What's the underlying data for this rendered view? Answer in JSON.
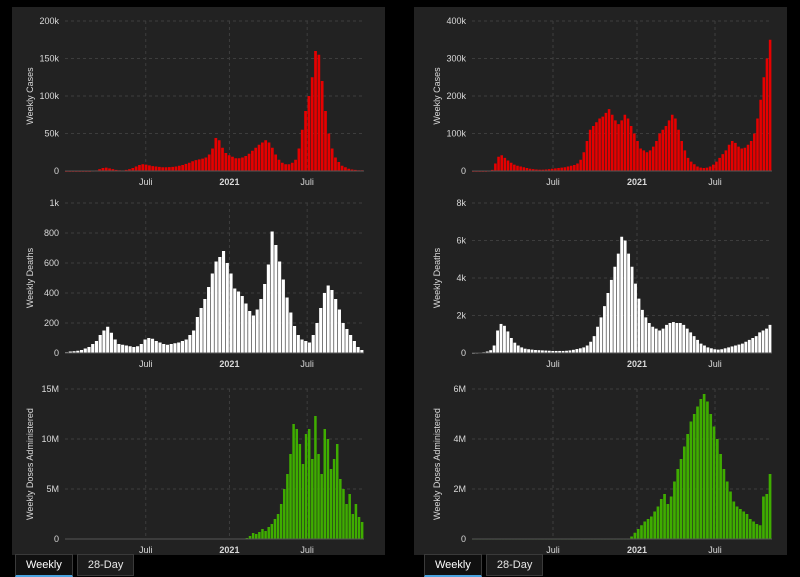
{
  "tabs": [
    "Weekly",
    "28-Day"
  ],
  "colors": {
    "cases": "#e60000",
    "deaths": "#ffffff",
    "doses": "#3fad00",
    "grid": "#3d3d3d",
    "axis_text": "#d9d9d9",
    "panel": "#222222"
  },
  "x_labels": [
    "Juli",
    "2021",
    "Juli"
  ],
  "left": {
    "charts": [
      {
        "key": "cases",
        "chart_data": {
          "type": "bar",
          "title": "",
          "xlabel": "",
          "ylabel": "Weekly Cases",
          "ylim": [
            0,
            200000
          ],
          "yticks": [
            "0",
            "50k",
            "100k",
            "150k",
            "200k"
          ],
          "xticks": [
            "Juli",
            "2021",
            "Juli"
          ],
          "color": "#e60000",
          "grid": true,
          "values": [
            0,
            0,
            0,
            0,
            0,
            0,
            0,
            0,
            300,
            800,
            2500,
            4000,
            4500,
            3500,
            2500,
            1500,
            1000,
            800,
            1500,
            2500,
            4000,
            6000,
            8000,
            9000,
            8500,
            7500,
            6500,
            6000,
            5500,
            5000,
            5000,
            5200,
            5500,
            6000,
            7000,
            8000,
            9500,
            11000,
            13000,
            14500,
            15500,
            16500,
            18000,
            22000,
            30000,
            44000,
            41000,
            31000,
            24000,
            21000,
            19000,
            17000,
            17000,
            18000,
            20000,
            23000,
            27000,
            31000,
            35000,
            38000,
            41000,
            38000,
            31000,
            22000,
            15000,
            11000,
            9000,
            9000,
            11000,
            15000,
            30000,
            55000,
            80000,
            100000,
            125000,
            160000,
            155000,
            120000,
            80000,
            50000,
            30000,
            18000,
            12000,
            7000,
            5000,
            3000,
            2000,
            1500,
            1000,
            1000
          ]
        }
      },
      {
        "key": "deaths",
        "chart_data": {
          "type": "bar",
          "title": "",
          "xlabel": "",
          "ylabel": "Weekly Deaths",
          "ylim": [
            0,
            1000
          ],
          "yticks": [
            "0",
            "200",
            "400",
            "600",
            "800",
            "1k"
          ],
          "xticks": [
            "Juli",
            "2021",
            "Juli"
          ],
          "color": "#ffffff",
          "grid": true,
          "values": [
            5,
            10,
            12,
            15,
            20,
            30,
            40,
            60,
            80,
            120,
            150,
            175,
            135,
            90,
            60,
            55,
            50,
            45,
            40,
            45,
            60,
            90,
            100,
            95,
            80,
            70,
            60,
            55,
            60,
            65,
            70,
            80,
            90,
            120,
            150,
            240,
            300,
            360,
            440,
            530,
            610,
            640,
            680,
            600,
            530,
            430,
            410,
            380,
            330,
            280,
            250,
            290,
            360,
            460,
            590,
            810,
            720,
            610,
            490,
            370,
            270,
            180,
            120,
            90,
            80,
            70,
            120,
            200,
            300,
            400,
            450,
            420,
            360,
            290,
            200,
            160,
            120,
            80,
            40,
            20
          ]
        }
      },
      {
        "key": "doses",
        "chart_data": {
          "type": "bar",
          "title": "",
          "xlabel": "",
          "ylabel": "Weekly Doses Administered",
          "ylim": [
            0,
            15000000
          ],
          "yticks": [
            "0",
            "5M",
            "10M",
            "15M"
          ],
          "xticks": [
            "Juli",
            "2021",
            "Juli"
          ],
          "color": "#3fad00",
          "grid": true,
          "values": [
            30000,
            30000,
            30000,
            30000,
            30000,
            30000,
            30000,
            30000,
            30000,
            30000,
            30000,
            30000,
            30000,
            30000,
            30000,
            30000,
            30000,
            30000,
            30000,
            30000,
            30000,
            30000,
            30000,
            30000,
            30000,
            30000,
            30000,
            30000,
            30000,
            30000,
            30000,
            30000,
            30000,
            30000,
            30000,
            30000,
            30000,
            30000,
            30000,
            30000,
            30000,
            30000,
            30000,
            30000,
            30000,
            30000,
            30000,
            30000,
            30000,
            30000,
            30000,
            30000,
            30000,
            30000,
            30000,
            30000,
            30000,
            30000,
            100000,
            300000,
            600000,
            500000,
            700000,
            1000000,
            800000,
            1200000,
            1500000,
            2000000,
            2500000,
            3500000,
            5000000,
            6500000,
            8500000,
            11500000,
            11000000,
            9500000,
            7500000,
            10500000,
            11000000,
            8000000,
            12300000,
            8500000,
            6500000,
            11000000,
            10000000,
            7000000,
            8000000,
            9500000,
            6000000,
            5000000,
            3500000,
            4500000,
            2500000,
            3500000,
            2200000,
            1700000
          ]
        }
      }
    ]
  },
  "right": {
    "charts": [
      {
        "key": "cases",
        "chart_data": {
          "type": "bar",
          "title": "",
          "xlabel": "",
          "ylabel": "Weekly Cases",
          "ylim": [
            0,
            400000
          ],
          "yticks": [
            "0",
            "100k",
            "200k",
            "300k",
            "400k"
          ],
          "xticks": [
            "Juli",
            "2021",
            "Juli"
          ],
          "color": "#e60000",
          "grid": true,
          "values": [
            0,
            0,
            0,
            0,
            0,
            500,
            3000,
            20000,
            38000,
            42000,
            35000,
            28000,
            22000,
            17000,
            14000,
            12000,
            10000,
            8000,
            6000,
            5000,
            4000,
            3500,
            3500,
            4000,
            5000,
            6000,
            7000,
            8000,
            9000,
            10000,
            12000,
            14000,
            16000,
            20000,
            30000,
            50000,
            80000,
            110000,
            120000,
            130000,
            140000,
            145000,
            155000,
            165000,
            150000,
            135000,
            125000,
            135000,
            150000,
            140000,
            120000,
            100000,
            80000,
            60000,
            55000,
            50000,
            55000,
            65000,
            80000,
            100000,
            110000,
            120000,
            135000,
            150000,
            140000,
            110000,
            80000,
            55000,
            35000,
            25000,
            18000,
            12000,
            9000,
            8000,
            9000,
            12000,
            17000,
            25000,
            35000,
            45000,
            55000,
            70000,
            80000,
            75000,
            65000,
            60000,
            62000,
            70000,
            80000,
            100000,
            140000,
            190000,
            250000,
            300000,
            350000
          ]
        }
      },
      {
        "key": "deaths",
        "chart_data": {
          "type": "bar",
          "title": "",
          "xlabel": "",
          "ylabel": "Weekly Deaths",
          "ylim": [
            0,
            8000
          ],
          "yticks": [
            "0",
            "2k",
            "4k",
            "6k",
            "8k"
          ],
          "xticks": [
            "Juli",
            "2021",
            "Juli"
          ],
          "color": "#ffffff",
          "grid": true,
          "values": [
            5,
            10,
            20,
            40,
            80,
            150,
            400,
            1200,
            1550,
            1450,
            1150,
            800,
            550,
            400,
            300,
            230,
            200,
            180,
            160,
            150,
            140,
            130,
            120,
            110,
            110,
            110,
            110,
            120,
            140,
            170,
            210,
            250,
            300,
            400,
            600,
            900,
            1400,
            1900,
            2500,
            3200,
            3900,
            4600,
            5300,
            6200,
            6000,
            5300,
            4600,
            3700,
            2900,
            2300,
            1900,
            1600,
            1400,
            1300,
            1200,
            1300,
            1500,
            1600,
            1650,
            1600,
            1600,
            1500,
            1300,
            1100,
            900,
            700,
            500,
            400,
            300,
            250,
            200,
            180,
            200,
            250,
            300,
            350,
            400,
            450,
            500,
            600,
            700,
            800,
            900,
            1100,
            1200,
            1300,
            1500
          ]
        }
      },
      {
        "key": "doses",
        "chart_data": {
          "type": "bar",
          "title": "",
          "xlabel": "",
          "ylabel": "Weekly Doses Administered",
          "ylim": [
            0,
            6000000
          ],
          "yticks": [
            "0",
            "2M",
            "4M",
            "6M"
          ],
          "xticks": [
            "Juli",
            "2021",
            "Juli"
          ],
          "color": "#3fad00",
          "grid": true,
          "values": [
            10000,
            10000,
            10000,
            10000,
            10000,
            10000,
            10000,
            10000,
            10000,
            10000,
            10000,
            10000,
            10000,
            10000,
            10000,
            10000,
            10000,
            10000,
            10000,
            10000,
            10000,
            10000,
            10000,
            10000,
            10000,
            10000,
            10000,
            10000,
            10000,
            10000,
            10000,
            10000,
            10000,
            10000,
            10000,
            10000,
            10000,
            10000,
            10000,
            10000,
            10000,
            10000,
            10000,
            10000,
            10000,
            10000,
            10000,
            10000,
            100000,
            250000,
            400000,
            550000,
            700000,
            800000,
            900000,
            1100000,
            1300000,
            1600000,
            1800000,
            1400000,
            1700000,
            2300000,
            2800000,
            3200000,
            3700000,
            4200000,
            4700000,
            5000000,
            5300000,
            5600000,
            5800000,
            5500000,
            5000000,
            4500000,
            4000000,
            3400000,
            2800000,
            2300000,
            1900000,
            1500000,
            1300000,
            1200000,
            1100000,
            1000000,
            800000,
            700000,
            600000,
            550000,
            1700000,
            1800000,
            2600000
          ]
        }
      }
    ]
  }
}
